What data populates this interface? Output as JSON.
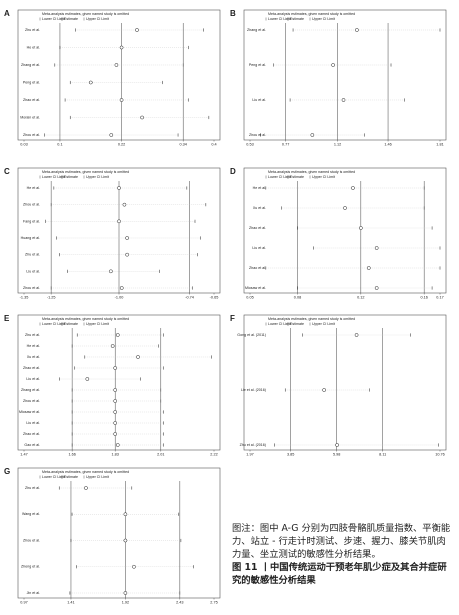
{
  "chart_data": [
    {
      "type": "sensitivity",
      "panel": "A",
      "subtitle": "Meta-analysis estimates, given named study is omitted",
      "legend": [
        "Lower CI Limit",
        "Estimate",
        "Upper CI Limit"
      ],
      "categories": [
        "Zhu et al.",
        "He et al.",
        "Zhang et al.",
        "Peng et al.",
        "Zhao et al.",
        "Morain et al.",
        "Zhou et al."
      ],
      "lower": [
        0.13,
        0.1,
        0.09,
        0.12,
        0.11,
        0.12,
        0.07
      ],
      "estimate": [
        0.25,
        0.22,
        0.21,
        0.16,
        0.22,
        0.26,
        0.2
      ],
      "upper": [
        0.38,
        0.35,
        0.34,
        0.3,
        0.35,
        0.39,
        0.33
      ],
      "xlim": [
        0.03,
        0.4
      ],
      "xticks": [
        0.03,
        0.1,
        0.22,
        0.34,
        0.4
      ]
    },
    {
      "type": "sensitivity",
      "panel": "B",
      "subtitle": "Meta-analysis estimates, given named study is omitted",
      "legend": [
        "Lower CI Limit",
        "Estimate",
        "Upper CI Limit"
      ],
      "categories": [
        "Zhang et al.",
        "Peng et al.",
        "Liu et al.",
        "Zhou et al."
      ],
      "lower": [
        0.82,
        0.69,
        0.8,
        0.6
      ],
      "estimate": [
        1.25,
        1.09,
        1.16,
        0.95
      ],
      "upper": [
        1.81,
        1.48,
        1.57,
        1.3
      ],
      "xlim": [
        0.53,
        1.81
      ],
      "xticks": [
        0.53,
        0.77,
        1.12,
        1.46,
        1.81
      ]
    },
    {
      "type": "sensitivity",
      "panel": "C",
      "subtitle": "Meta-analysis estimates, given named study is omitted",
      "legend": [
        "Lower CI Limit",
        "Estimate",
        "Upper CI Limit"
      ],
      "categories": [
        "He et al.",
        "Zhou et al.",
        "Fang et al.",
        "Huang et al.",
        "Zhu et al.",
        "Liu et al.",
        "Zhou et al."
      ],
      "lower": [
        -1.24,
        -1.25,
        -1.27,
        -1.23,
        -1.22,
        -1.19,
        -1.25
      ],
      "estimate": [
        -1.0,
        -0.98,
        -1.0,
        -0.97,
        -0.97,
        -1.03,
        -0.99
      ],
      "upper": [
        -0.75,
        -0.68,
        -0.72,
        -0.7,
        -0.71,
        -0.85,
        -0.73
      ],
      "xlim": [
        -1.35,
        -0.65
      ],
      "xticks": [
        -1.35,
        -1.25,
        {
          "value": -1.0,
          "label": "-1.00"
        },
        -0.74,
        -0.65
      ]
    },
    {
      "type": "sensitivity",
      "panel": "D",
      "subtitle": "Meta-analysis estimates, given named study is omitted",
      "legend": [
        "Lower CI Limit",
        "Estimate",
        "Upper CI Limit"
      ],
      "categories": [
        "He et al.",
        "Xu et al.",
        "Zhao et al.",
        "Liu et al.",
        "Zhao et al.",
        "Miosaw et al."
      ],
      "lower": [
        0.06,
        0.07,
        0.08,
        0.09,
        0.06,
        0.08
      ],
      "estimate": [
        0.115,
        0.11,
        0.12,
        0.13,
        0.125,
        0.13
      ],
      "upper": [
        0.16,
        0.16,
        0.165,
        0.17,
        0.17,
        0.165
      ],
      "xlim": [
        0.05,
        0.17
      ],
      "xticks": [
        0.05,
        0.08,
        0.12,
        0.16,
        0.17
      ]
    },
    {
      "type": "sensitivity",
      "panel": "E",
      "subtitle": "Meta-analysis estimates, given named study is omitted",
      "legend": [
        "Lower CI Limit",
        "Estimate",
        "Upper CI Limit"
      ],
      "categories": [
        "Zhu et al.",
        "He et al.",
        "Xu et al.",
        "Zhao et al.",
        "Liu et al.",
        "Zhang et al.",
        "Zhou et al.",
        "Miosaw et al.",
        "Liu et al.",
        "Zhao et al.",
        "Gao et al."
      ],
      "lower": [
        1.68,
        1.66,
        1.71,
        1.67,
        1.61,
        1.66,
        1.66,
        1.66,
        1.66,
        1.66,
        1.66
      ],
      "estimate": [
        1.84,
        1.82,
        1.92,
        1.83,
        1.72,
        1.83,
        1.83,
        1.83,
        1.83,
        1.83,
        1.84
      ],
      "upper": [
        2.02,
        2.0,
        2.21,
        2.02,
        1.93,
        2.01,
        2.01,
        2.02,
        2.02,
        2.02,
        2.02
      ],
      "xlim": [
        1.47,
        2.22
      ],
      "xticks": [
        1.47,
        1.66,
        1.83,
        2.01,
        2.22
      ]
    },
    {
      "type": "sensitivity",
      "panel": "F",
      "subtitle": "Meta-analysis estimates, given named study is omitted",
      "legend": [
        "Lower CI Limit",
        "Estimate",
        "Upper CI Limit"
      ],
      "categories": [
        "Gong et al. (2011)",
        "Lie et al. (2016)",
        "Zhu et al. (2016)"
      ],
      "lower": [
        4.4,
        3.6,
        3.1
      ],
      "estimate": [
        6.9,
        5.4,
        6.0
      ],
      "upper": [
        9.4,
        7.5,
        10.7
      ],
      "xlim": [
        1.97,
        10.76
      ],
      "xticks": [
        1.97,
        3.85,
        5.98,
        8.11,
        10.76
      ]
    },
    {
      "type": "sensitivity",
      "panel": "G",
      "subtitle": "Meta-analysis estimates, given named study is omitted",
      "legend": [
        "Lower CI Limit",
        "Estimate",
        "Upper CI Limit"
      ],
      "categories": [
        "Zhu et al.",
        "Wang et al.",
        "Zhou et al.",
        "Zheng et al.",
        "Jin et al."
      ],
      "lower": [
        1.3,
        1.42,
        1.41,
        1.46,
        1.4
      ],
      "estimate": [
        1.55,
        1.92,
        1.92,
        2.0,
        1.92
      ],
      "upper": [
        1.98,
        2.42,
        2.44,
        2.56,
        2.43
      ],
      "xlim": [
        0.97,
        2.75
      ],
      "xticks": [
        0.97,
        1.41,
        1.92,
        2.43,
        2.75
      ]
    }
  ],
  "caption": {
    "note": "图注：图中 A-G 分别为四肢骨骼肌质量指数、平衡能力、站立 - 行走计时测试、步速、握力、膝关节肌肉力量、坐立测试的敏感性分析结果。",
    "title": "图 11 丨中国传统运动干预老年肌少症及其合并症研究的敏感性分析结果"
  }
}
